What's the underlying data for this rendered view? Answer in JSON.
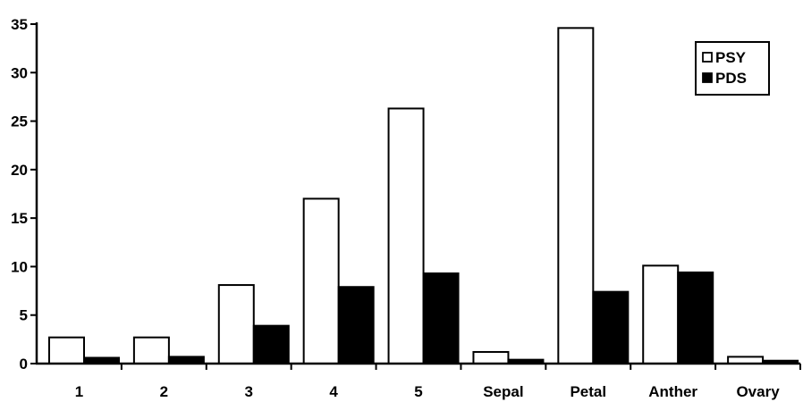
{
  "chart_data": {
    "type": "bar",
    "title": "",
    "xlabel": "",
    "ylabel": "",
    "categories": [
      "1",
      "2",
      "3",
      "4",
      "5",
      "Sepal",
      "Petal",
      "Anther",
      "Ovary"
    ],
    "series": [
      {
        "name": "PSY",
        "color": "#ffffff",
        "values": [
          2.7,
          2.7,
          8.1,
          17.0,
          26.3,
          1.2,
          34.6,
          10.1,
          0.7
        ]
      },
      {
        "name": "PDS",
        "color": "#000000",
        "values": [
          0.6,
          0.7,
          3.9,
          7.9,
          9.3,
          0.4,
          7.4,
          9.4,
          0.3
        ]
      }
    ],
    "ylim": [
      0,
      35
    ],
    "yticks": [
      "0",
      "5",
      "10",
      "15",
      "20",
      "25",
      "30",
      "35"
    ],
    "legend_position": "top-right",
    "grid": false
  }
}
